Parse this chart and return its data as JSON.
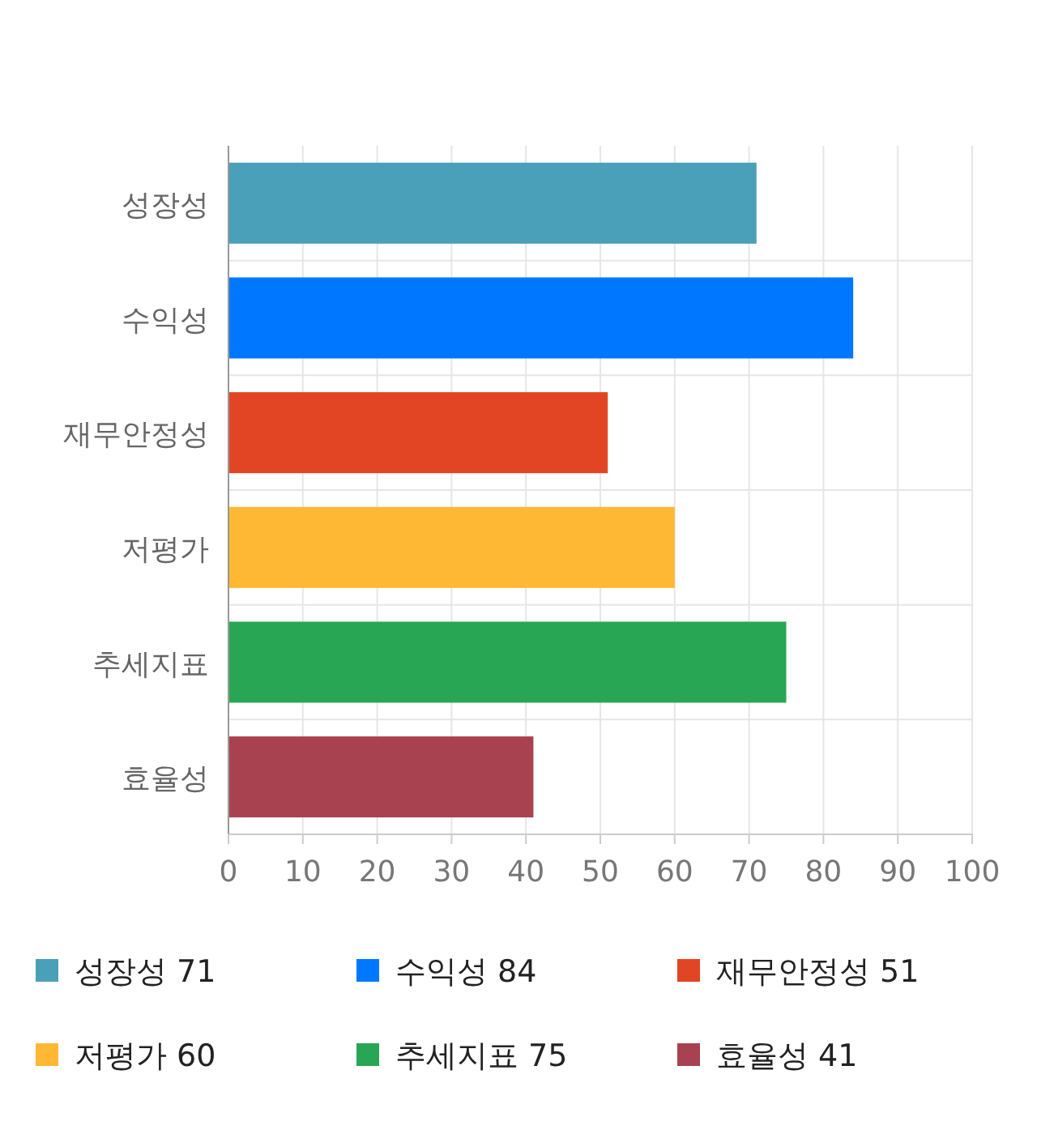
{
  "chart_data": {
    "type": "bar",
    "orientation": "horizontal",
    "stacked": true,
    "categories": [
      "성장성",
      "수익성",
      "재무안정성",
      "저평가",
      "추세지표",
      "효율성"
    ],
    "series": [
      {
        "name": "성장성",
        "color": "#4aa0b9",
        "values": [
          71,
          null,
          null,
          null,
          null,
          null
        ]
      },
      {
        "name": "수익성",
        "color": "#0077ff",
        "values": [
          null,
          84,
          null,
          null,
          null,
          null
        ]
      },
      {
        "name": "재무안정성",
        "color": "#e24523",
        "values": [
          null,
          null,
          51,
          null,
          null,
          null
        ]
      },
      {
        "name": "저평가",
        "color": "#ffb833",
        "values": [
          null,
          null,
          null,
          60,
          null,
          null
        ]
      },
      {
        "name": "추세지표",
        "color": "#28a653",
        "values": [
          null,
          null,
          null,
          null,
          75,
          null
        ]
      },
      {
        "name": "효율성",
        "color": "#a84150",
        "values": [
          null,
          null,
          null,
          null,
          null,
          41
        ]
      }
    ],
    "xlim": [
      0,
      100
    ],
    "xticks": [
      0,
      10,
      20,
      30,
      40,
      50,
      60,
      70,
      80,
      90,
      100
    ],
    "grid": true,
    "legend": "bottom",
    "annotations": [
      "71",
      "84",
      "51",
      "60",
      "75",
      "41"
    ]
  }
}
